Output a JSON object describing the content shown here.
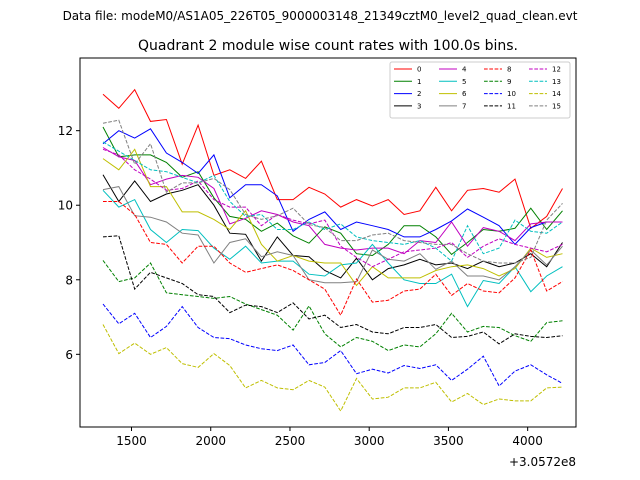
{
  "header": {
    "data_file": "Data file: modeM0/AS1A05_226T05_9000003148_21349cztM0_level2_quad_clean.evt"
  },
  "chart_data": {
    "type": "line",
    "title": "Quadrant 2 module wise count rates with 100.0s bins.",
    "xlabel": "",
    "ylabel": "",
    "x_offset_label": "+3.0572e8",
    "xlim": [
      1175,
      4305
    ],
    "ylim": [
      4.05,
      13.95
    ],
    "xticks": [
      1500,
      2000,
      2500,
      3000,
      3500,
      4000
    ],
    "yticks": [
      6,
      8,
      10,
      12
    ],
    "legend_position": "top-right",
    "x": [
      1320,
      1420,
      1520,
      1620,
      1720,
      1820,
      1920,
      2020,
      2120,
      2220,
      2320,
      2420,
      2520,
      2620,
      2720,
      2820,
      2920,
      3020,
      3120,
      3220,
      3320,
      3420,
      3520,
      3620,
      3720,
      3820,
      3920,
      4020,
      4120,
      4220
    ],
    "series": [
      {
        "name": "0",
        "color": "#ff0000",
        "dash": "solid",
        "values": [
          12.98,
          12.6,
          13.1,
          12.25,
          12.3,
          11.1,
          12.15,
          10.8,
          10.95,
          10.72,
          11.18,
          10.15,
          10.15,
          10.48,
          10.3,
          9.95,
          10.15,
          9.98,
          10.15,
          9.75,
          9.85,
          10.48,
          9.85,
          10.4,
          10.45,
          10.35,
          10.7,
          9.38,
          9.7,
          10.45
        ]
      },
      {
        "name": "1",
        "color": "#008000",
        "dash": "solid",
        "values": [
          12.1,
          11.3,
          11.35,
          11.35,
          11.15,
          10.75,
          10.9,
          10.2,
          9.7,
          9.62,
          9.3,
          9.52,
          9.18,
          8.98,
          9.42,
          9.25,
          8.7,
          8.65,
          8.95,
          9.45,
          9.45,
          9.15,
          8.68,
          9.0,
          9.35,
          9.3,
          9.38,
          9.92,
          9.35,
          9.85
        ]
      },
      {
        "name": "2",
        "color": "#0000ff",
        "dash": "solid",
        "values": [
          11.65,
          12.0,
          11.8,
          12.05,
          11.4,
          11.15,
          10.85,
          11.35,
          10.2,
          10.55,
          10.55,
          10.25,
          9.3,
          9.62,
          9.82,
          9.35,
          9.55,
          9.45,
          9.35,
          9.15,
          9.15,
          9.35,
          9.58,
          9.9,
          9.68,
          9.45,
          8.95,
          9.4,
          9.55,
          9.55
        ]
      },
      {
        "name": "3",
        "color": "#000000",
        "dash": "solid",
        "values": [
          10.82,
          10.1,
          10.65,
          10.1,
          10.3,
          10.4,
          10.55,
          10.0,
          9.25,
          9.22,
          8.5,
          9.15,
          8.65,
          8.62,
          8.25,
          8.05,
          8.58,
          8.0,
          8.3,
          8.4,
          8.55,
          8.4,
          8.45,
          8.3,
          8.5,
          8.35,
          8.45,
          8.7,
          8.35,
          9.0
        ]
      },
      {
        "name": "4",
        "color": "#c000c0",
        "dash": "solid",
        "values": [
          11.55,
          11.3,
          11.2,
          10.55,
          10.7,
          10.8,
          10.75,
          10.45,
          9.5,
          9.65,
          9.85,
          9.75,
          9.55,
          9.45,
          8.95,
          8.85,
          8.8,
          8.85,
          8.85,
          8.7,
          9.05,
          9.0,
          9.55,
          8.9,
          9.4,
          9.3,
          9.05,
          9.5,
          9.55,
          9.55
        ]
      },
      {
        "name": "5",
        "color": "#00bfbf",
        "dash": "solid",
        "values": [
          10.4,
          9.95,
          10.15,
          9.35,
          9.0,
          9.35,
          9.32,
          8.85,
          8.55,
          8.9,
          8.45,
          8.5,
          8.5,
          8.15,
          8.1,
          8.4,
          8.45,
          8.95,
          8.45,
          8.0,
          7.9,
          7.9,
          8.15,
          7.28,
          7.98,
          7.9,
          8.35,
          7.68,
          8.1,
          8.35
        ]
      },
      {
        "name": "6",
        "color": "#bfbf00",
        "dash": "solid",
        "values": [
          11.25,
          10.95,
          11.5,
          10.5,
          10.5,
          9.82,
          9.82,
          9.62,
          9.35,
          9.85,
          8.95,
          8.5,
          8.65,
          8.5,
          8.45,
          8.45,
          7.85,
          8.35,
          8.05,
          8.05,
          8.05,
          8.25,
          8.35,
          8.4,
          8.3,
          8.1,
          8.3,
          8.85,
          8.6,
          8.7
        ]
      },
      {
        "name": "7",
        "color": "#808080",
        "dash": "solid",
        "values": [
          10.42,
          10.5,
          9.72,
          9.68,
          9.55,
          9.25,
          9.2,
          8.45,
          9.0,
          9.1,
          8.62,
          8.75,
          8.65,
          8.0,
          7.92,
          7.92,
          7.95,
          8.8,
          8.55,
          8.5,
          8.7,
          8.28,
          8.5,
          8.1,
          8.1,
          8.0,
          8.35,
          8.8,
          8.4,
          8.9
        ]
      },
      {
        "name": "8",
        "color": "#ff0000",
        "dash": "dashed",
        "values": [
          10.1,
          10.1,
          9.75,
          9.0,
          8.95,
          8.45,
          8.9,
          8.9,
          8.45,
          8.2,
          8.3,
          8.4,
          8.25,
          8.0,
          7.75,
          7.05,
          8.02,
          7.4,
          7.45,
          7.7,
          7.75,
          8.15,
          7.58,
          7.9,
          7.7,
          7.65,
          8.05,
          8.8,
          7.7,
          7.95
        ]
      },
      {
        "name": "9",
        "color": "#008000",
        "dash": "dashed",
        "values": [
          8.52,
          7.95,
          8.05,
          8.45,
          7.65,
          7.6,
          7.55,
          7.5,
          7.55,
          7.35,
          7.2,
          7.05,
          6.65,
          7.3,
          6.55,
          6.2,
          6.45,
          6.35,
          6.1,
          6.25,
          6.2,
          6.55,
          7.1,
          6.6,
          6.75,
          6.72,
          6.5,
          6.35,
          6.85,
          6.9
        ]
      },
      {
        "name": "10",
        "color": "#0000ff",
        "dash": "dashed",
        "values": [
          7.35,
          6.82,
          7.1,
          6.45,
          6.75,
          7.28,
          6.72,
          6.45,
          6.42,
          6.25,
          6.15,
          6.1,
          6.25,
          5.72,
          5.78,
          6.1,
          5.48,
          5.6,
          5.5,
          5.7,
          5.62,
          5.72,
          5.3,
          5.6,
          5.95,
          5.15,
          5.55,
          5.72,
          5.45,
          5.22
        ]
      },
      {
        "name": "11",
        "color": "#000000",
        "dash": "dashed",
        "values": [
          9.15,
          9.18,
          7.75,
          8.2,
          8.05,
          7.9,
          7.6,
          7.55,
          7.12,
          7.32,
          7.28,
          7.12,
          7.38,
          6.95,
          7.05,
          6.72,
          6.8,
          6.6,
          6.55,
          6.72,
          6.72,
          6.8,
          6.45,
          6.48,
          6.6,
          6.28,
          6.55,
          6.48,
          6.45,
          6.5
        ]
      },
      {
        "name": "12",
        "color": "#c000c0",
        "dash": "dashed",
        "values": [
          11.5,
          11.35,
          10.95,
          10.7,
          10.4,
          10.45,
          10.65,
          10.15,
          9.95,
          9.95,
          9.45,
          9.75,
          9.6,
          9.5,
          9.6,
          8.9,
          8.6,
          8.35,
          8.55,
          8.75,
          8.8,
          8.85,
          9.0,
          8.6,
          8.9,
          9.1,
          8.95,
          8.85,
          8.75,
          8.95
        ]
      },
      {
        "name": "13",
        "color": "#00bfbf",
        "dash": "dashed",
        "values": [
          11.7,
          11.45,
          11.2,
          10.95,
          10.9,
          10.75,
          10.6,
          10.8,
          10.1,
          9.7,
          9.75,
          9.35,
          9.35,
          9.55,
          9.35,
          9.5,
          9.15,
          9.05,
          9.0,
          8.95,
          9.05,
          8.85,
          8.5,
          9.45,
          8.7,
          8.85,
          9.6,
          9.3,
          9.25,
          9.55
        ]
      },
      {
        "name": "14",
        "color": "#bfbf00",
        "dash": "dashed",
        "values": [
          6.8,
          6.02,
          6.3,
          6.0,
          6.18,
          5.75,
          5.65,
          6.02,
          5.7,
          5.1,
          5.3,
          5.1,
          5.05,
          5.3,
          5.12,
          4.48,
          5.35,
          4.8,
          4.85,
          5.1,
          5.1,
          5.25,
          4.72,
          4.95,
          4.65,
          4.8,
          4.75,
          4.75,
          5.1,
          5.12
        ]
      },
      {
        "name": "15",
        "color": "#808080",
        "dash": "dashed",
        "values": [
          12.2,
          12.28,
          11.1,
          11.65,
          10.35,
          10.6,
          10.6,
          10.72,
          10.42,
          9.75,
          9.62,
          9.72,
          9.92,
          9.48,
          9.4,
          9.05,
          9.05,
          9.2,
          9.25,
          9.05,
          9.0,
          8.95,
          8.95,
          8.7,
          8.5,
          8.45,
          8.45,
          8.6,
          9.6,
          10.05
        ]
      }
    ]
  }
}
